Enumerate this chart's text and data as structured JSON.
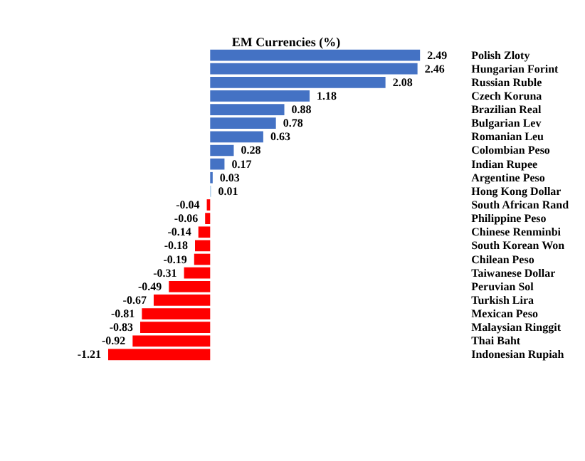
{
  "chart_data": {
    "type": "bar",
    "orientation": "horizontal",
    "title": "EM Currencies (%)",
    "categories": [
      "Polish Zloty",
      "Hungarian Forint",
      "Russian Ruble",
      "Czech Koruna",
      "Brazilian Real",
      "Bulgarian Lev",
      "Romanian Leu",
      "Colombian Peso",
      "Indian Rupee",
      "Argentine Peso",
      "Hong Kong Dollar",
      "South African Rand",
      "Philippine Peso",
      "Chinese Renminbi",
      "South Korean Won",
      "Chilean Peso",
      "Taiwanese Dollar",
      "Peruvian Sol",
      "Turkish Lira",
      "Mexican Peso",
      "Malaysian Ringgit",
      "Thai Baht",
      "Indonesian Rupiah"
    ],
    "values": [
      2.49,
      2.46,
      2.08,
      1.18,
      0.88,
      0.78,
      0.63,
      0.28,
      0.17,
      0.03,
      0.01,
      -0.04,
      -0.06,
      -0.14,
      -0.18,
      -0.19,
      -0.31,
      -0.49,
      -0.67,
      -0.81,
      -0.83,
      -0.92,
      -1.21
    ],
    "colors": [
      "#4472c4",
      "#4472c4",
      "#4472c4",
      "#4472c4",
      "#4472c4",
      "#4472c4",
      "#4472c4",
      "#4472c4",
      "#4472c4",
      "#4472c4",
      "#9dc3e6",
      "#ff0000",
      "#ff0000",
      "#ff0000",
      "#ff0000",
      "#ff0000",
      "#ff0000",
      "#ff0000",
      "#ff0000",
      "#ff0000",
      "#ff0000",
      "#ff0000",
      "#ff0000"
    ],
    "data_labels": true,
    "grid": false
  }
}
